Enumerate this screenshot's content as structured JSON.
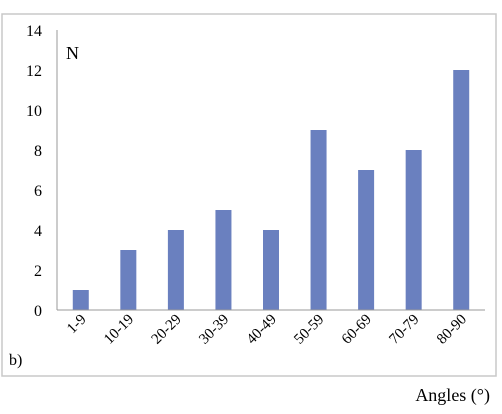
{
  "chart_data": {
    "type": "bar",
    "categories": [
      "1-9",
      "10-19",
      "20-29",
      "30-39",
      "40-49",
      "50-59",
      "60-69",
      "70-79",
      "80-90"
    ],
    "values": [
      1,
      3,
      4,
      5,
      4,
      9,
      7,
      8,
      12
    ],
    "ylabel": "N",
    "xlabel": "Angles (°)",
    "panel_label": "b)",
    "ylim": [
      0,
      14
    ],
    "yticks": [
      0,
      2,
      4,
      6,
      8,
      10,
      12,
      14
    ],
    "grid": false,
    "bar_color": "#6a80bf",
    "frame_color": "#c8c8c8"
  }
}
